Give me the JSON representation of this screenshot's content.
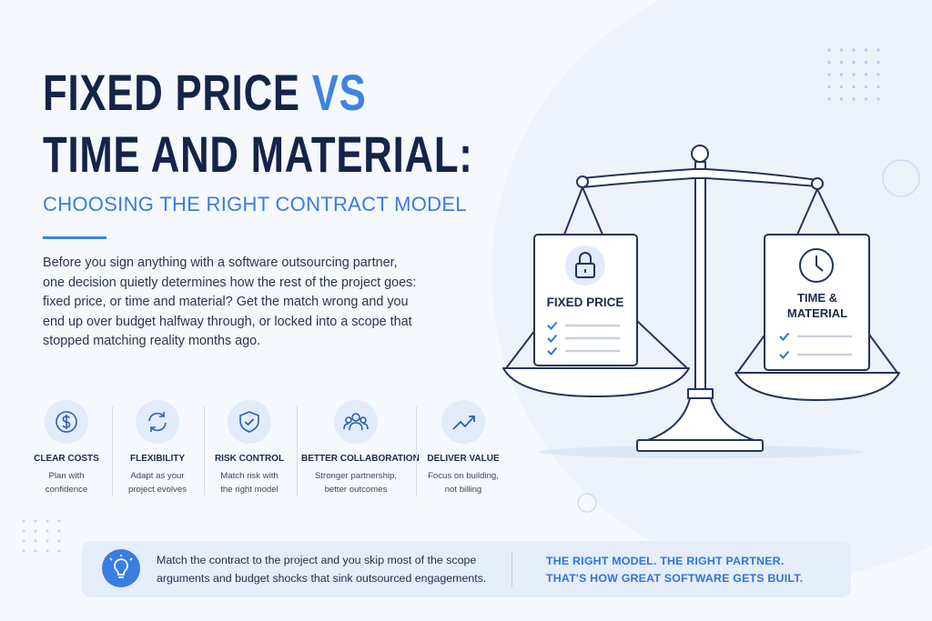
{
  "header": {
    "title_part1": "FIXED PRICE",
    "title_accent": "VS",
    "title_line2": "TIME AND MATERIAL:",
    "subtitle": "CHOOSING THE RIGHT CONTRACT MODEL"
  },
  "intro": [
    "Before you sign anything with a software outsourcing partner,",
    "one decision quietly determines how the rest of the project goes:",
    "fixed price, or time and material? Get the match wrong and you",
    "end up over budget halfway through, or locked into a scope that",
    "stopped matching reality months ago."
  ],
  "scale": {
    "left_card": "FIXED PRICE",
    "right_card": [
      "TIME &",
      "MATERIAL"
    ]
  },
  "features": [
    {
      "title": "CLEAR COSTS",
      "description": [
        "Plan with",
        "confidence"
      ]
    },
    {
      "title": "FLEXIBILITY",
      "description": [
        "Adapt as your",
        "project evolves"
      ]
    },
    {
      "title": "RISK CONTROL",
      "description": [
        "Match risk with",
        "the right model"
      ]
    },
    {
      "title": "BETTER COLLABORATION",
      "description": [
        "Stronger partnership,",
        "better outcomes"
      ]
    },
    {
      "title": "DELIVER VALUE",
      "description": [
        "Focus on building,",
        "not billing"
      ]
    }
  ],
  "footer": {
    "tip": [
      "Match the contract to the project and you skip most of the scope",
      "arguments and budget shocks that sink outsourced engagements."
    ],
    "tagline": [
      "THE RIGHT MODEL. THE RIGHT PARTNER.",
      "THAT'S HOW GREAT SOFTWARE GETS BUILT."
    ]
  }
}
